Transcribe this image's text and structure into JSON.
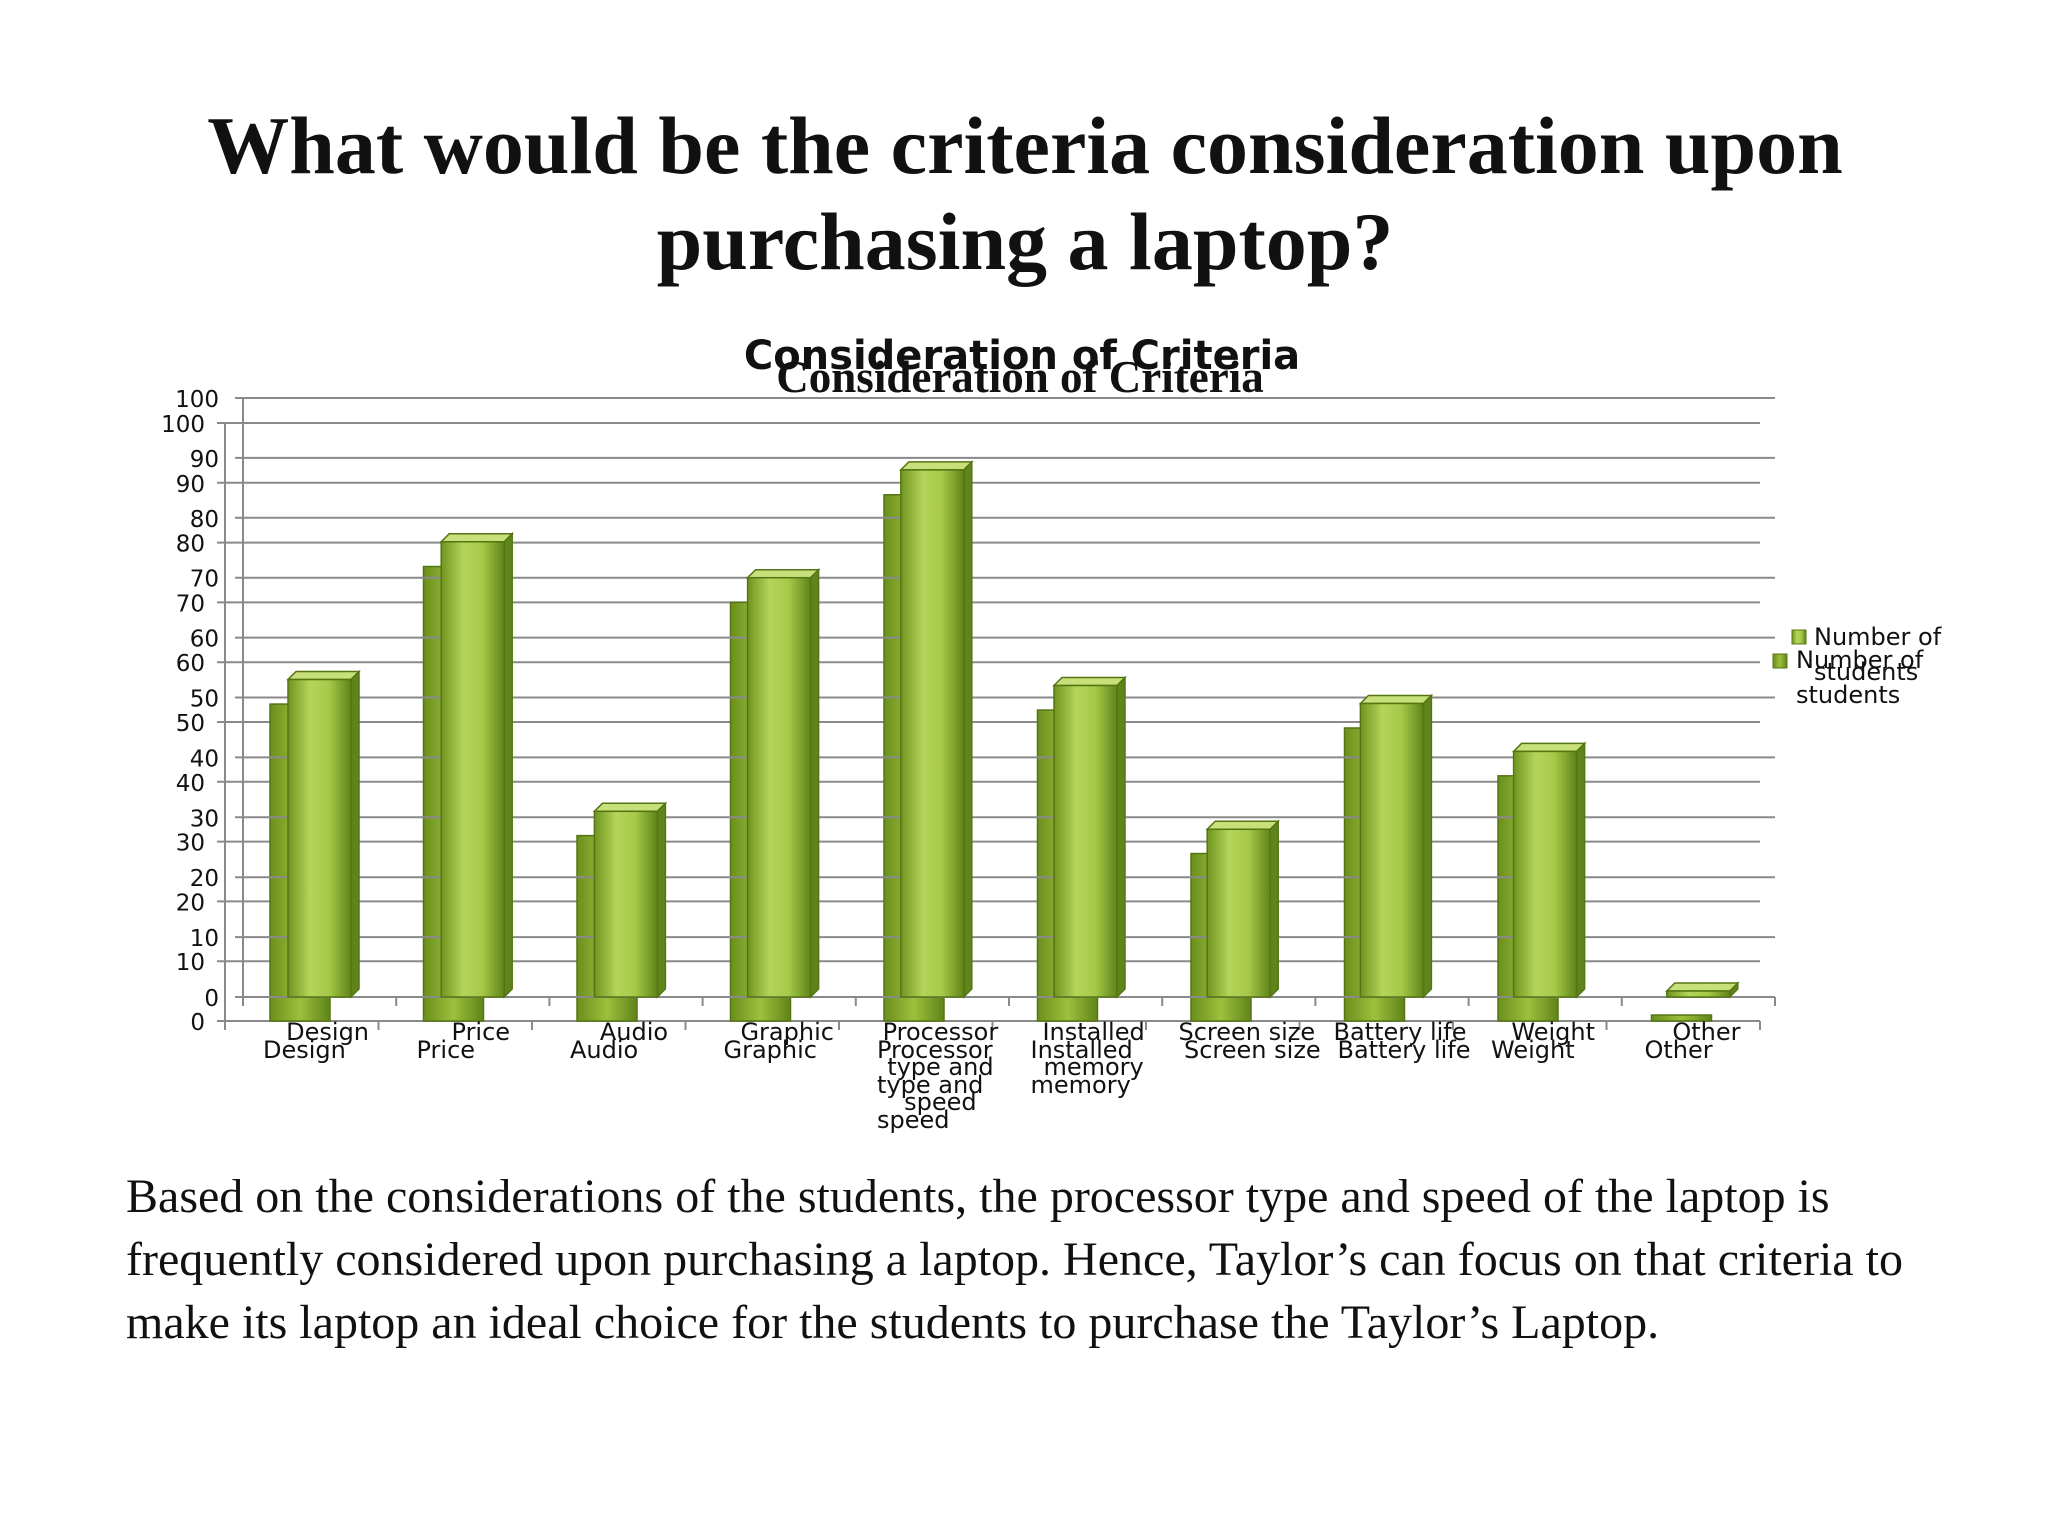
{
  "slide": {
    "title": "What would be the criteria consideration upon purchasing a laptop?",
    "body": "Based on the considerations of the students, the processor type and speed of the laptop is frequently considered upon purchasing a laptop. Hence, Taylor’s can focus on that criteria to make its laptop an ideal choice for the students to purchase the Taylor’s Laptop."
  },
  "chart_data": {
    "type": "bar",
    "title": "Consideration of Criteria",
    "categories": [
      "Design",
      "Price",
      "Audio",
      "Graphic",
      "Processor type and speed",
      "Installed memory",
      "Screen size",
      "Battery life",
      "Weight",
      "Other"
    ],
    "category_lines": [
      [
        "Design"
      ],
      [
        "Price"
      ],
      [
        "Audio"
      ],
      [
        "Graphic"
      ],
      [
        "Processor",
        "type and",
        "speed"
      ],
      [
        "Installed",
        "memory"
      ],
      [
        "Screen size"
      ],
      [
        "Battery life"
      ],
      [
        "Weight"
      ],
      [
        "Other"
      ]
    ],
    "series": [
      {
        "name": "Number of students",
        "values": [
          53,
          76,
          31,
          70,
          88,
          52,
          28,
          49,
          41,
          1
        ]
      }
    ],
    "ylim": [
      0,
      100
    ],
    "yticks": [
      0,
      10,
      20,
      30,
      40,
      50,
      60,
      70,
      80,
      90,
      100
    ],
    "legend_lines": [
      "Number of",
      "students"
    ],
    "legend_position": "right",
    "grid": true,
    "colors": {
      "bar_light": "#b5d45a",
      "bar_mid": "#93bb35",
      "bar_dark": "#5f8419",
      "grid": "#8a8a8a",
      "text": "#111111"
    }
  }
}
